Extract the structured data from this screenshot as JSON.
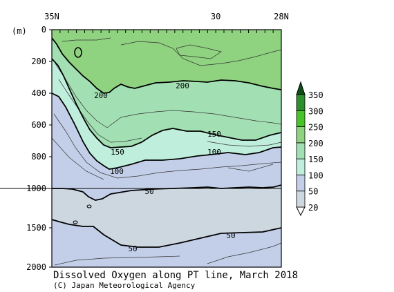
{
  "chart_data": {
    "type": "heatmap",
    "title": "Dissolved Oxygen along PT line, March 2018",
    "credit": "(C) Japan Meteorological Agency",
    "x_ticks": [
      "35N",
      "30",
      "28N"
    ],
    "x_tick_values": [
      35,
      30,
      28
    ],
    "xlim": [
      35,
      28
    ],
    "ylabel": "(m)",
    "y_ticks": [
      "0",
      "200",
      "400",
      "600",
      "800",
      "1000",
      "1500",
      "2000"
    ],
    "y_tick_values": [
      0,
      200,
      400,
      600,
      800,
      1000,
      1500,
      2000
    ],
    "ylim": [
      2000,
      0
    ],
    "y_scale_note": "upper 0-1000 m stretched, 1000-2000 m compressed",
    "colorbar": {
      "levels": [
        20,
        50,
        100,
        150,
        200,
        250,
        300,
        350
      ],
      "labels": [
        "20",
        "50",
        "100",
        "150",
        "200",
        "250",
        "300",
        "350"
      ],
      "colors": [
        "#cdd7e0",
        "#c3cfe8",
        "#bfefdc",
        "#a2dfb3",
        "#8fd27f",
        "#48c42a",
        "#2e8f2d",
        "#0f4d16"
      ]
    },
    "contours": [
      {
        "label": "200",
        "level": 200
      },
      {
        "label": "200",
        "level": 200
      },
      {
        "label": "150",
        "level": 150
      },
      {
        "label": "150",
        "level": 150
      },
      {
        "label": "100",
        "level": 100
      },
      {
        "label": "100",
        "level": 100
      },
      {
        "label": "50",
        "level": 50
      },
      {
        "label": "50",
        "level": 50
      },
      {
        "label": "50",
        "level": 50
      }
    ]
  }
}
